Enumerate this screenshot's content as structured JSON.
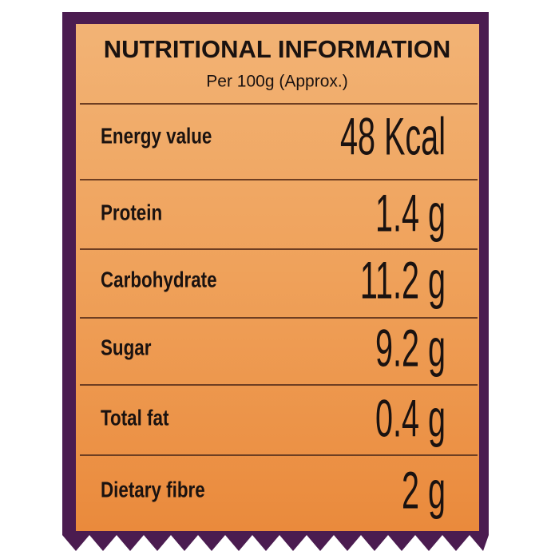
{
  "header": {
    "title": "NUTRITIONAL INFORMATION",
    "subtitle": "Per 100g (Approx.)"
  },
  "table": {
    "rows": [
      [
        "Energy value",
        "48 Kcal"
      ],
      [
        "Protein",
        "1.4 g"
      ],
      [
        "Carbohydrate",
        "11.2 g"
      ],
      [
        "Sugar",
        "9.2 g"
      ],
      [
        "Total fat",
        "0.4 g"
      ],
      [
        "Dietary fibre",
        "2 g"
      ]
    ]
  }
}
